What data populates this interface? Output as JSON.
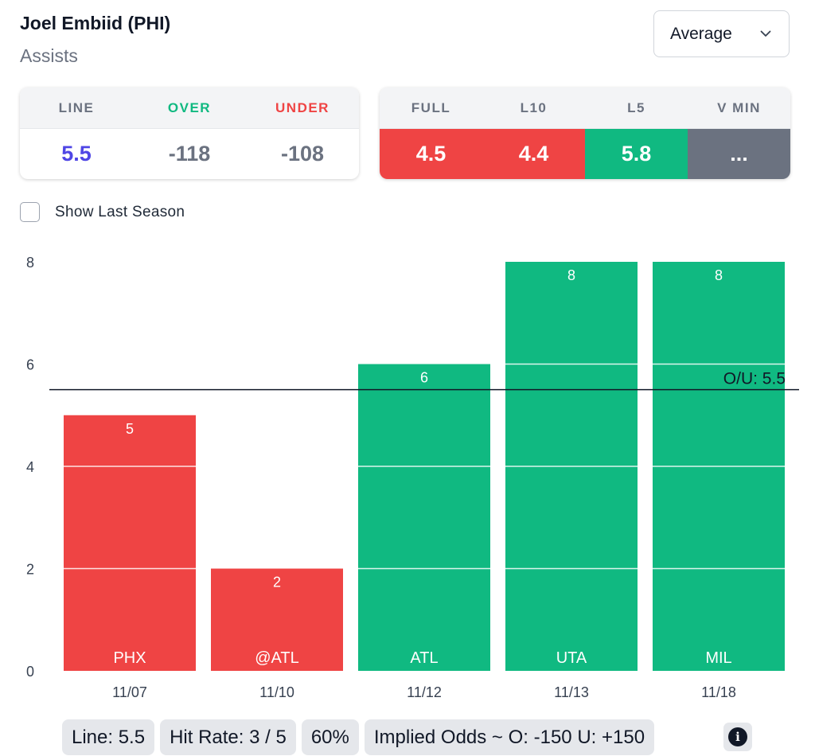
{
  "header": {
    "player": "Joel Embiid (PHI)",
    "stat": "Assists"
  },
  "dropdown": {
    "selected": "Average",
    "icon": "chevron-down-icon"
  },
  "odds_card": {
    "headers": {
      "line": "LINE",
      "over": "OVER",
      "under": "UNDER"
    },
    "values": {
      "line": "5.5",
      "over": "-118",
      "under": "-108"
    }
  },
  "avg_card": {
    "headers": {
      "full": "FULL",
      "l10": "L10",
      "l5": "L5",
      "vmin": "V MIN"
    },
    "values": {
      "full": "4.5",
      "l10": "4.4",
      "l5": "5.8",
      "vmin": "..."
    }
  },
  "toggle": {
    "label": "Show Last Season",
    "checked": false
  },
  "colors": {
    "over": "#10b981",
    "under": "#ef4444",
    "line": "#4f46e5",
    "neutral": "#6b7280"
  },
  "chart_data": {
    "type": "bar",
    "categories": [
      "11/07",
      "11/10",
      "11/12",
      "11/13",
      "11/18"
    ],
    "opponents": [
      "PHX",
      "@ATL",
      "ATL",
      "UTA",
      "MIL"
    ],
    "values": [
      5,
      2,
      6,
      8,
      8
    ],
    "bar_colors": [
      "#ef4444",
      "#ef4444",
      "#10b981",
      "#10b981",
      "#10b981"
    ],
    "ylim": [
      0,
      8
    ],
    "yticks": [
      "0",
      "2",
      "4",
      "6",
      "8"
    ],
    "threshold": 5.5,
    "threshold_label": "O/U: 5.5",
    "grid": true
  },
  "summary": {
    "line": "Line: 5.5",
    "hit_rate": "Hit Rate: 3 / 5",
    "pct": "60%",
    "implied": "Implied Odds ~ O: -150 U: +150",
    "info_icon": "info-icon"
  }
}
